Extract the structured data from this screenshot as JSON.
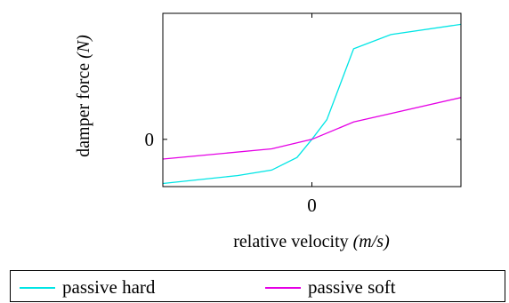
{
  "chart_data": {
    "type": "line",
    "title": "",
    "xlabel": "relative velocity",
    "xlabel_unit": "(m/s)",
    "ylabel": "damper force",
    "ylabel_unit": "(N)",
    "x_ticks": [
      {
        "value": 0,
        "label": "0"
      }
    ],
    "y_ticks": [
      {
        "value": 0,
        "label": "0"
      }
    ],
    "xlim": [
      -1.0,
      1.0
    ],
    "ylim": [
      -0.6,
      1.6
    ],
    "grid": false,
    "legend_position": "bottom",
    "series": [
      {
        "name": "passive hard",
        "color": "#00e5e5",
        "x": [
          -1.0,
          -0.5,
          -0.27,
          -0.1,
          0.0,
          0.1,
          0.28,
          0.53,
          1.0
        ],
        "y": [
          -0.56,
          -0.46,
          -0.39,
          -0.23,
          0.0,
          0.25,
          1.15,
          1.33,
          1.46
        ]
      },
      {
        "name": "passive soft",
        "color": "#e500e5",
        "x": [
          -1.0,
          -0.27,
          0.0,
          0.28,
          1.0
        ],
        "y": [
          -0.25,
          -0.12,
          0.0,
          0.22,
          0.53
        ]
      }
    ]
  }
}
